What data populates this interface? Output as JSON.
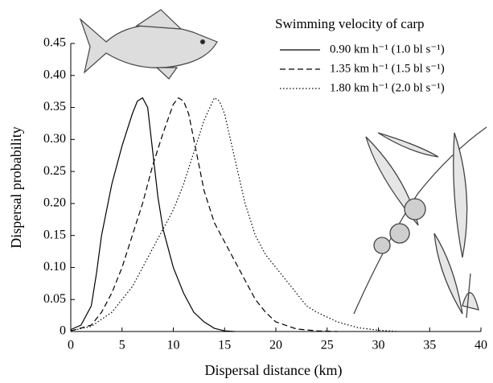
{
  "chart_data": {
    "type": "line",
    "xlabel": "Dispersal distance (km)",
    "ylabel": "Dispersal probability",
    "legend_title": "Swimming velocity of carp",
    "legend_position": "upper right",
    "xlim": [
      0,
      40
    ],
    "xticks": [
      0,
      5,
      10,
      15,
      20,
      25,
      30,
      35,
      40
    ],
    "ylim": [
      0,
      0.45
    ],
    "yticks": [
      0,
      0.05,
      {
        "value": 0.1,
        "label": "0.10"
      },
      0.15,
      {
        "value": 0.2,
        "label": "0.20"
      },
      0.25,
      {
        "value": 0.3,
        "label": "0.30"
      },
      0.35,
      {
        "value": 0.4,
        "label": "0.40"
      },
      0.45
    ],
    "series": [
      {
        "name": "0.90 km h⁻¹ (1.0 bl s⁻¹)",
        "color": "#000000",
        "linestyle": "solid",
        "x": [
          0,
          1,
          2,
          2.5,
          3,
          4,
          5,
          6,
          6.5,
          7,
          7.5,
          8,
          8.5,
          9,
          10,
          11,
          12,
          13,
          14,
          15,
          16
        ],
        "values": [
          0.003,
          0.01,
          0.04,
          0.09,
          0.15,
          0.23,
          0.29,
          0.34,
          0.36,
          0.365,
          0.35,
          0.28,
          0.21,
          0.16,
          0.1,
          0.06,
          0.03,
          0.015,
          0.005,
          0.001,
          0
        ]
      },
      {
        "name": "1.35 km h⁻¹ (1.5 bl s⁻¹)",
        "color": "#000000",
        "linestyle": "dashed",
        "x": [
          0,
          2,
          3,
          4,
          5,
          6,
          7,
          8,
          9,
          10,
          10.5,
          11,
          11.5,
          12,
          13,
          14,
          15,
          16,
          17,
          18,
          19,
          20,
          22,
          24,
          26
        ],
        "values": [
          0.001,
          0.01,
          0.03,
          0.06,
          0.1,
          0.15,
          0.2,
          0.26,
          0.31,
          0.355,
          0.365,
          0.36,
          0.34,
          0.3,
          0.22,
          0.17,
          0.14,
          0.11,
          0.08,
          0.05,
          0.03,
          0.015,
          0.004,
          0.001,
          0
        ]
      },
      {
        "name": "1.80 km h⁻¹ (2.0 bl s⁻¹)",
        "color": "#000000",
        "linestyle": "dotted",
        "x": [
          0,
          2,
          4,
          6,
          8,
          10,
          11,
          12,
          13,
          14,
          14.5,
          15,
          16,
          17,
          18,
          19,
          20,
          21,
          22,
          23,
          24,
          26,
          28,
          30,
          32
        ],
        "values": [
          0.001,
          0.008,
          0.03,
          0.07,
          0.13,
          0.19,
          0.23,
          0.28,
          0.33,
          0.365,
          0.36,
          0.34,
          0.27,
          0.2,
          0.15,
          0.12,
          0.1,
          0.08,
          0.06,
          0.04,
          0.03,
          0.015,
          0.006,
          0.002,
          0
        ]
      }
    ]
  }
}
